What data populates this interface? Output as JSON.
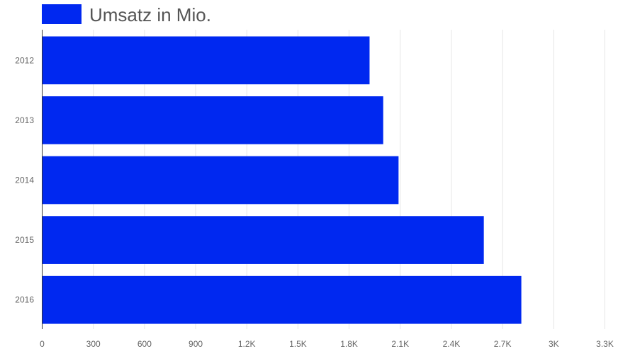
{
  "chart_data": {
    "type": "bar",
    "orientation": "horizontal",
    "categories": [
      "2012",
      "2013",
      "2014",
      "2015",
      "2016"
    ],
    "series": [
      {
        "name": "Umsatz in Mio.",
        "values": [
          1920,
          2000,
          2090,
          2590,
          2810
        ],
        "color": "#0028f0"
      }
    ],
    "xlim": [
      0,
      3300
    ],
    "xticks": [
      0,
      300,
      600,
      900,
      1200,
      1500,
      1800,
      2100,
      2400,
      2700,
      3000,
      3300
    ],
    "xtick_labels": [
      "0",
      "300",
      "600",
      "900",
      "1.2K",
      "1.5K",
      "1.8K",
      "2.1K",
      "2.4K",
      "2.7K",
      "3K",
      "3.3K"
    ],
    "grid": true,
    "legend_position": "top-left"
  }
}
